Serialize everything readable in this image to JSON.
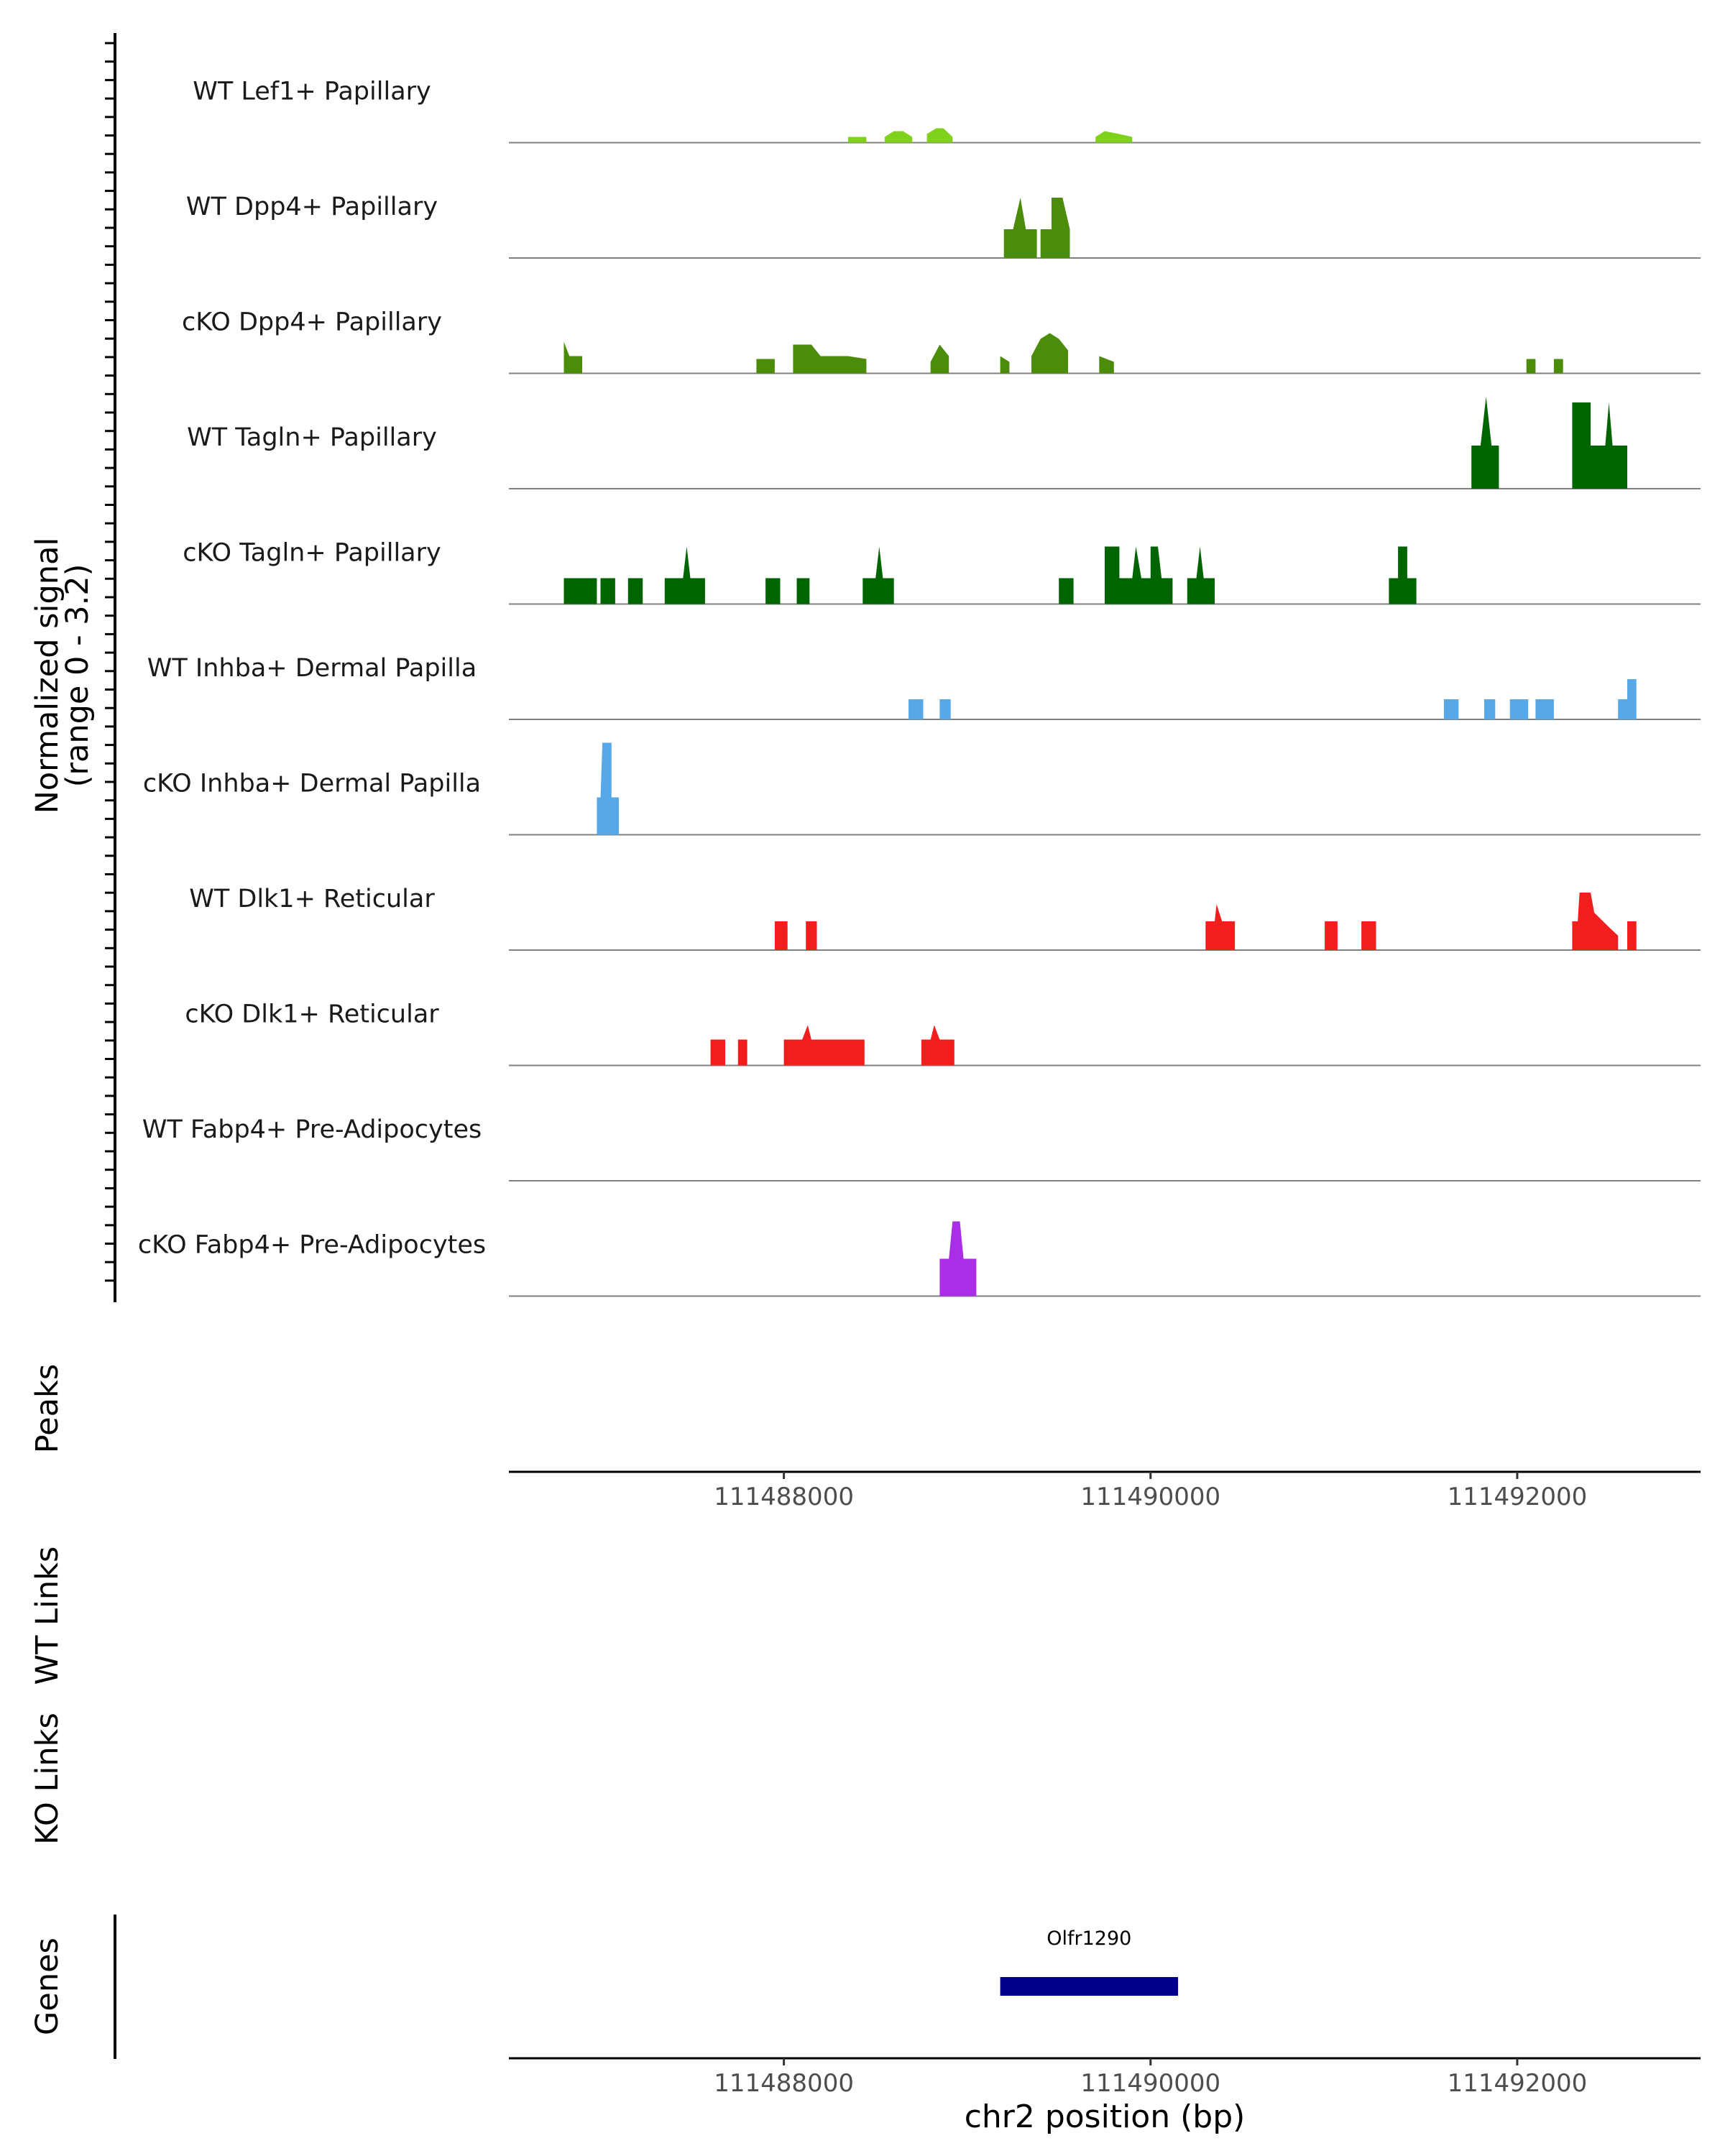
{
  "chart_data": {
    "type": "area",
    "subtype": "genome-coverage-tracks",
    "ylabel": "Normalized signal",
    "ylabel_range": "(range 0 - 3.2)",
    "ylim": [
      0,
      3.2
    ],
    "xlabel": "chr2 position (bp)",
    "xlim": [
      111486500,
      111493000
    ],
    "xticks": [
      111488000,
      111490000,
      111492000
    ],
    "xtick_labels": [
      "111488000",
      "111490000",
      "111492000"
    ],
    "tracks": [
      {
        "name": "WT Lef1+ Papillary",
        "color": "#7FD11B",
        "segments": [
          [
            [
              111488350,
              0.2
            ],
            [
              111488450,
              0.2
            ]
          ],
          [
            [
              111488550,
              0.2
            ],
            [
              111488600,
              0.4
            ],
            [
              111488650,
              0.4
            ],
            [
              111488700,
              0.2
            ]
          ],
          [
            [
              111488780,
              0.3
            ],
            [
              111488830,
              0.5
            ],
            [
              111488870,
              0.5
            ],
            [
              111488920,
              0.2
            ]
          ],
          [
            [
              111489700,
              0.2
            ],
            [
              111489750,
              0.4
            ],
            [
              111489830,
              0.3
            ],
            [
              111489900,
              0.2
            ]
          ]
        ]
      },
      {
        "name": "WT Dpp4+ Papillary",
        "color": "#4B8C0A",
        "segments": [
          [
            [
              111489200,
              1.0
            ],
            [
              111489250,
              1.0
            ],
            [
              111489290,
              2.1
            ],
            [
              111489320,
              1.0
            ],
            [
              111489380,
              1.0
            ]
          ],
          [
            [
              111489400,
              1.0
            ],
            [
              111489460,
              1.0
            ],
            [
              111489460,
              2.1
            ],
            [
              111489520,
              2.1
            ],
            [
              111489560,
              1.0
            ]
          ]
        ]
      },
      {
        "name": "cKO Dpp4+ Papillary",
        "color": "#4B8C0A",
        "segments": [
          [
            [
              111486800,
              1.1
            ],
            [
              111486830,
              0.6
            ],
            [
              111486900,
              0.6
            ]
          ],
          [
            [
              111487850,
              0.5
            ],
            [
              111487950,
              0.5
            ]
          ],
          [
            [
              111488050,
              1.0
            ],
            [
              111488150,
              1.0
            ],
            [
              111488200,
              0.6
            ],
            [
              111488350,
              0.6
            ],
            [
              111488450,
              0.5
            ]
          ],
          [
            [
              111488800,
              0.4
            ],
            [
              111488850,
              1.0
            ],
            [
              111488900,
              0.6
            ]
          ],
          [
            [
              111489180,
              0.6
            ],
            [
              111489230,
              0.4
            ]
          ],
          [
            [
              111489350,
              0.6
            ],
            [
              111489400,
              1.2
            ],
            [
              111489450,
              1.4
            ],
            [
              111489500,
              1.2
            ],
            [
              111489550,
              0.8
            ]
          ],
          [
            [
              111489720,
              0.6
            ],
            [
              111489800,
              0.4
            ]
          ],
          [
            [
              111492050,
              0.5
            ],
            [
              111492100,
              0.5
            ]
          ],
          [
            [
              111492200,
              0.5
            ],
            [
              111492250,
              0.5
            ]
          ]
        ]
      },
      {
        "name": "WT Tagln+ Papillary",
        "color": "#006400",
        "segments": [
          [
            [
              111491750,
              1.5
            ],
            [
              111491800,
              1.5
            ],
            [
              111491830,
              3.2
            ],
            [
              111491860,
              1.5
            ],
            [
              111491900,
              1.5
            ]
          ],
          [
            [
              111492300,
              3.0
            ],
            [
              111492400,
              3.0
            ],
            [
              111492400,
              1.5
            ],
            [
              111492480,
              1.5
            ],
            [
              111492500,
              3.0
            ],
            [
              111492520,
              1.5
            ],
            [
              111492600,
              1.5
            ]
          ]
        ]
      },
      {
        "name": "cKO Tagln+ Papillary",
        "color": "#006400",
        "segments": [
          [
            [
              111486800,
              0.9
            ],
            [
              111486980,
              0.9
            ]
          ],
          [
            [
              111487000,
              0.9
            ],
            [
              111487080,
              0.9
            ]
          ],
          [
            [
              111487150,
              0.9
            ],
            [
              111487230,
              0.9
            ]
          ],
          [
            [
              111487350,
              0.9
            ],
            [
              111487450,
              0.9
            ],
            [
              111487470,
              2.0
            ],
            [
              111487490,
              0.9
            ],
            [
              111487570,
              0.9
            ]
          ],
          [
            [
              111487900,
              0.9
            ],
            [
              111487980,
              0.9
            ]
          ],
          [
            [
              111488070,
              0.9
            ],
            [
              111488140,
              0.9
            ]
          ],
          [
            [
              111488430,
              0.9
            ],
            [
              111488500,
              0.9
            ],
            [
              111488520,
              2.0
            ],
            [
              111488540,
              0.9
            ],
            [
              111488600,
              0.9
            ]
          ],
          [
            [
              111489500,
              0.9
            ],
            [
              111489580,
              0.9
            ]
          ],
          [
            [
              111489750,
              2.0
            ],
            [
              111489830,
              2.0
            ],
            [
              111489830,
              0.9
            ],
            [
              111489900,
              0.9
            ],
            [
              111489920,
              2.0
            ],
            [
              111489950,
              0.9
            ],
            [
              111490000,
              0.9
            ],
            [
              111490000,
              2.0
            ],
            [
              111490040,
              2.0
            ],
            [
              111490060,
              0.9
            ],
            [
              111490120,
              0.9
            ]
          ],
          [
            [
              111490200,
              0.9
            ],
            [
              111490250,
              0.9
            ],
            [
              111490270,
              2.0
            ],
            [
              111490290,
              0.9
            ],
            [
              111490350,
              0.9
            ]
          ],
          [
            [
              111491300,
              0.9
            ],
            [
              111491350,
              0.9
            ],
            [
              111491350,
              2.0
            ],
            [
              111491400,
              2.0
            ],
            [
              111491400,
              0.9
            ],
            [
              111491450,
              0.9
            ]
          ]
        ]
      },
      {
        "name": "WT Inhba+ Dermal Papilla",
        "color": "#56A8E8",
        "segments": [
          [
            [
              111488680,
              0.7
            ],
            [
              111488760,
              0.7
            ]
          ],
          [
            [
              111488850,
              0.7
            ],
            [
              111488910,
              0.7
            ]
          ],
          [
            [
              111491600,
              0.7
            ],
            [
              111491680,
              0.7
            ]
          ],
          [
            [
              111491820,
              0.7
            ],
            [
              111491880,
              0.7
            ]
          ],
          [
            [
              111491960,
              0.7
            ],
            [
              111492060,
              0.7
            ]
          ],
          [
            [
              111492100,
              0.7
            ],
            [
              111492200,
              0.7
            ]
          ],
          [
            [
              111492550,
              0.7
            ],
            [
              111492600,
              0.7
            ],
            [
              111492600,
              1.4
            ],
            [
              111492650,
              1.4
            ]
          ]
        ]
      },
      {
        "name": "cKO Inhba+ Dermal Papilla",
        "color": "#56A8E8",
        "segments": [
          [
            [
              111486980,
              1.3
            ],
            [
              111487000,
              1.3
            ],
            [
              111487010,
              3.2
            ],
            [
              111487060,
              3.2
            ],
            [
              111487060,
              1.3
            ],
            [
              111487100,
              1.3
            ]
          ]
        ]
      },
      {
        "name": "WT Dlk1+ Reticular",
        "color": "#F21E1E",
        "segments": [
          [
            [
              111487950,
              1.0
            ],
            [
              111488020,
              1.0
            ]
          ],
          [
            [
              111488120,
              1.0
            ],
            [
              111488180,
              1.0
            ]
          ],
          [
            [
              111490300,
              1.0
            ],
            [
              111490350,
              1.0
            ],
            [
              111490360,
              1.6
            ],
            [
              111490390,
              1.0
            ],
            [
              111490460,
              1.0
            ]
          ],
          [
            [
              111490950,
              1.0
            ],
            [
              111491020,
              1.0
            ]
          ],
          [
            [
              111491150,
              1.0
            ],
            [
              111491230,
              1.0
            ]
          ],
          [
            [
              111492300,
              1.0
            ],
            [
              111492330,
              1.0
            ],
            [
              111492330,
              1.0
            ],
            [
              111492340,
              2.0
            ],
            [
              111492400,
              2.0
            ],
            [
              111492420,
              1.3
            ],
            [
              111492500,
              0.8
            ],
            [
              111492550,
              0.5
            ]
          ],
          [
            [
              111492600,
              1.0
            ],
            [
              111492650,
              1.0
            ]
          ]
        ]
      },
      {
        "name": "cKO Dlk1+ Reticular",
        "color": "#F21E1E",
        "segments": [
          [
            [
              111487600,
              0.9
            ],
            [
              111487680,
              0.9
            ]
          ],
          [
            [
              111487750,
              0.9
            ],
            [
              111487800,
              0.9
            ]
          ],
          [
            [
              111488000,
              0.9
            ],
            [
              111488100,
              0.9
            ],
            [
              111488130,
              1.4
            ],
            [
              111488150,
              0.9
            ],
            [
              111488350,
              0.9
            ],
            [
              111488380,
              0.9
            ],
            [
              111488440,
              0.9
            ]
          ],
          [
            [
              111488750,
              0.9
            ],
            [
              111488800,
              0.9
            ],
            [
              111488820,
              1.4
            ],
            [
              111488850,
              0.9
            ],
            [
              111488930,
              0.9
            ]
          ]
        ]
      },
      {
        "name": "WT Fabp4+ Pre-Adipocytes",
        "color": "#AA2EE6",
        "segments": []
      },
      {
        "name": "cKO Fabp4+ Pre-Adipocytes",
        "color": "#AA2EE6",
        "segments": [
          [
            [
              111488850,
              1.3
            ],
            [
              111488900,
              1.3
            ],
            [
              111488920,
              2.6
            ],
            [
              111488960,
              2.6
            ],
            [
              111488980,
              1.3
            ],
            [
              111489050,
              1.3
            ]
          ]
        ]
      }
    ],
    "panels": [
      "Peaks",
      "WT Links",
      "KO Links",
      "Genes"
    ],
    "genes": [
      {
        "name": "Olfr1290",
        "start": 111489180,
        "end": 111490150,
        "color": "#00008B"
      }
    ]
  }
}
